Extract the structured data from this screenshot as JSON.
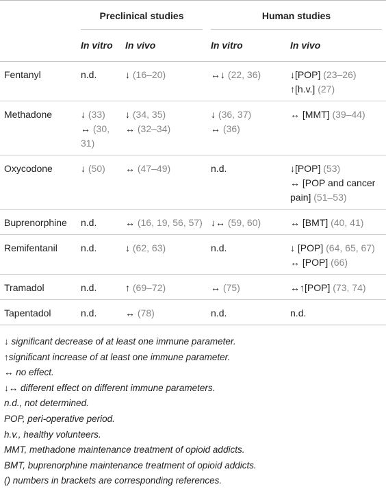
{
  "header": {
    "groups": [
      "Preclinical studies",
      "Human studies"
    ],
    "subheads": [
      "In vitro",
      "In vivo",
      "In vitro",
      "In vivo"
    ]
  },
  "table": {
    "rows": [
      {
        "drug": "Fentanyl",
        "cells": [
          [
            {
              "t": "n.d."
            }
          ],
          [
            {
              "t": "↓",
              "r": "(16–20)"
            }
          ],
          [
            {
              "t": "↔↓",
              "r": "(22, 36)"
            }
          ],
          [
            {
              "t": "↓[POP]",
              "r": "(23–26)"
            },
            {
              "t": "↑[h.v.]",
              "r": "(27)"
            }
          ]
        ]
      },
      {
        "drug": "Methadone",
        "cells": [
          [
            {
              "t": "↓",
              "r": "(33)"
            },
            {
              "t": "↔",
              "r": "(30, 31)"
            }
          ],
          [
            {
              "t": "↓",
              "r": "(34, 35)"
            },
            {
              "t": "↔",
              "r": "(32–34)"
            }
          ],
          [
            {
              "t": "↓",
              "r": "(36, 37)"
            },
            {
              "t": "↔",
              "r": "(36)"
            }
          ],
          [
            {
              "t": "↔ [MMT]",
              "r": "(39–44)"
            }
          ]
        ]
      },
      {
        "drug": "Oxycodone",
        "cells": [
          [
            {
              "t": "↓",
              "r": "(50)"
            }
          ],
          [
            {
              "t": "↔",
              "r": "(47–49)"
            }
          ],
          [
            {
              "t": "n.d."
            }
          ],
          [
            {
              "t": "↓[POP]",
              "r": "(53)"
            },
            {
              "t": "↔ [POP and cancer pain]",
              "r": "(51–53)"
            }
          ]
        ]
      },
      {
        "drug": "Buprenorphine",
        "cells": [
          [
            {
              "t": "n.d."
            }
          ],
          [
            {
              "t": "↔",
              "r": "(16, 19, 56, 57)"
            }
          ],
          [
            {
              "t": "↓↔",
              "r": "(59, 60)"
            }
          ],
          [
            {
              "t": "↔ [BMT]",
              "r": "(40, 41)"
            }
          ]
        ]
      },
      {
        "drug": "Remifentanil",
        "cells": [
          [
            {
              "t": "n.d."
            }
          ],
          [
            {
              "t": "↓",
              "r": "(62, 63)"
            }
          ],
          [
            {
              "t": "n.d."
            }
          ],
          [
            {
              "t": "↓ [POP]",
              "r": "(64, 65, 67)"
            },
            {
              "t": "↔ [POP]",
              "r": "(66)"
            }
          ]
        ]
      },
      {
        "drug": "Tramadol",
        "cells": [
          [
            {
              "t": "n.d."
            }
          ],
          [
            {
              "t": "↑",
              "r": "(69–72)"
            }
          ],
          [
            {
              "t": "↔",
              "r": "(75)"
            }
          ],
          [
            {
              "t": "↔↑[POP]",
              "r": "(73, 74)"
            }
          ]
        ]
      },
      {
        "drug": "Tapentadol",
        "cells": [
          [
            {
              "t": "n.d."
            }
          ],
          [
            {
              "t": "↔",
              "r": "(78)"
            }
          ],
          [
            {
              "t": "n.d."
            }
          ],
          [
            {
              "t": "n.d."
            }
          ]
        ]
      }
    ]
  },
  "footnotes": [
    "↓ significant decrease of at least one immune parameter.",
    "↑significant increase of at least one immune parameter.",
    "↔ no effect.",
    "↓↔ different effect on different immune parameters.",
    "n.d., not determined.",
    "POP, peri-operative period.",
    "h.v., healthy volunteers.",
    "MMT, methadone maintenance treatment of opioid addicts.",
    "BMT, buprenorphine maintenance treatment of opioid addicts.",
    "() numbers in brackets are corresponding references."
  ]
}
